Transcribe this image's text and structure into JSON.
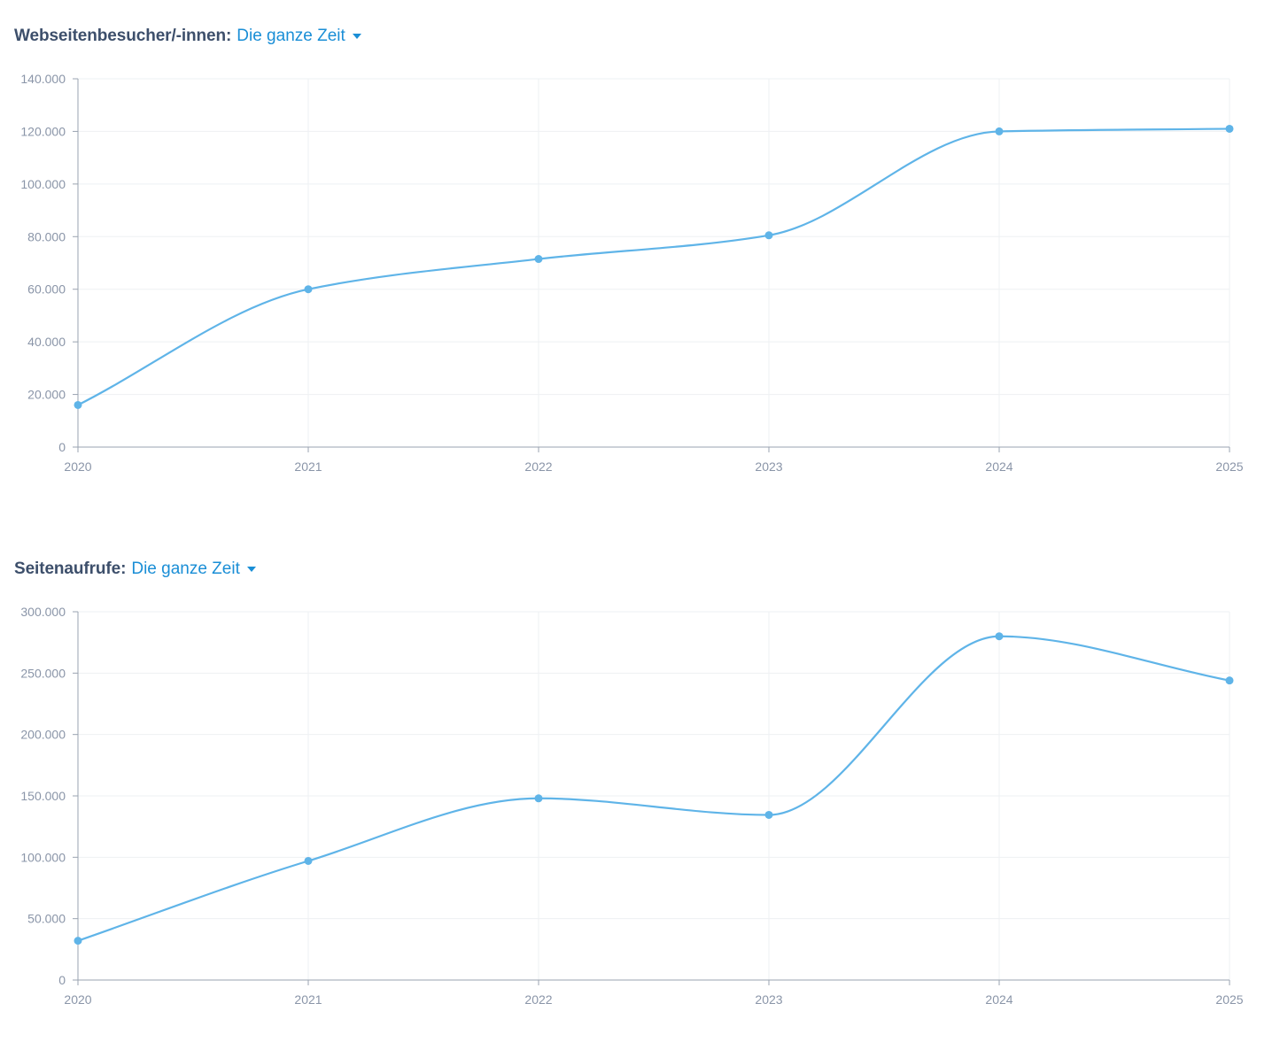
{
  "charts": [
    {
      "title": "Webseitenbesucher/-innen:",
      "range_label": "Die ganze Zeit",
      "icon": "caret-down-icon"
    },
    {
      "title": "Seitenaufrufe:",
      "range_label": "Die ganze Zeit",
      "icon": "caret-down-icon"
    }
  ],
  "colors": {
    "line": "#5fb4e8",
    "grid": "#eef0f3",
    "axis": "#9aa3b0",
    "title": "#3d4f6b",
    "accent": "#1a8ed6"
  },
  "chart_data": [
    {
      "type": "line",
      "title": "Webseitenbesucher/-innen:",
      "xlabel": "",
      "ylabel": "",
      "x": [
        "2020",
        "2021",
        "2022",
        "2023",
        "2024",
        "2025"
      ],
      "y_ticks": [
        "0",
        "20.000",
        "40.000",
        "60.000",
        "80.000",
        "100.000",
        "120.000",
        "140.000"
      ],
      "ylim": [
        0,
        140000
      ],
      "series": [
        {
          "values": [
            16000,
            60000,
            71500,
            80500,
            120000,
            121000
          ]
        }
      ],
      "grid": true,
      "legend": "none"
    },
    {
      "type": "line",
      "title": "Seitenaufrufe:",
      "xlabel": "",
      "ylabel": "",
      "x": [
        "2020",
        "2021",
        "2022",
        "2023",
        "2024",
        "2025"
      ],
      "y_ticks": [
        "0",
        "50.000",
        "100.000",
        "150.000",
        "200.000",
        "250.000",
        "300.000"
      ],
      "ylim": [
        0,
        300000
      ],
      "series": [
        {
          "values": [
            32000,
            97000,
            148000,
            134500,
            280000,
            244000
          ]
        }
      ],
      "grid": true,
      "legend": "none"
    }
  ]
}
